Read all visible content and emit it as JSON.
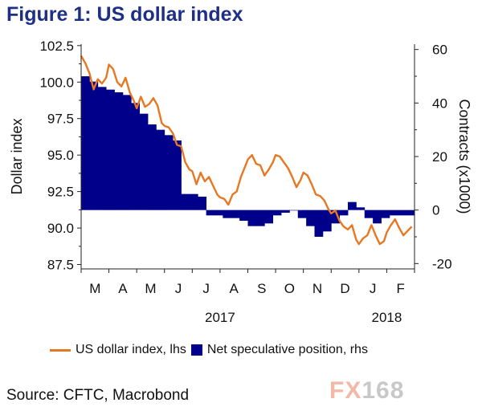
{
  "title": "Figure 1: US dollar index",
  "legend": {
    "line_label": "US dollar index, lhs",
    "bar_label": "Net speculative position, rhs"
  },
  "source": "Source: CFTC, Macrobond",
  "logo": {
    "part1": "FX",
    "part2": "168"
  },
  "colors": {
    "line": "#e87722",
    "bars": "#00008b",
    "title": "#1f2f86"
  },
  "chart_data": {
    "type": "line+bar",
    "title": "Figure 1: US dollar index",
    "ylabel_left": "Dollar index",
    "ylabel_right": "Contracts (x1000)",
    "ylim_left": [
      87.2,
      102.6
    ],
    "ylim_right": [
      -22,
      62
    ],
    "y_ticks_left": [
      "102.5",
      "100.0",
      "97.5",
      "95.0",
      "92.5",
      "90.0",
      "87.5"
    ],
    "y_ticks_right": [
      "60",
      "40",
      "20",
      "0",
      "-20"
    ],
    "x_range": [
      0,
      12
    ],
    "x_tick_labels": [
      "M",
      "A",
      "M",
      "J",
      "J",
      "A",
      "S",
      "O",
      "N",
      "D",
      "J",
      "F"
    ],
    "x_year_labels": [
      {
        "label": "2017",
        "x": 5
      },
      {
        "label": "2018",
        "x": 11
      }
    ],
    "line_series": {
      "name": "US dollar index, lhs",
      "x": [
        0,
        0.15,
        0.3,
        0.45,
        0.6,
        0.75,
        0.9,
        1.0,
        1.15,
        1.3,
        1.45,
        1.6,
        1.75,
        1.9,
        2.0,
        2.15,
        2.3,
        2.45,
        2.6,
        2.75,
        2.9,
        3.0,
        3.15,
        3.3,
        3.45,
        3.6,
        3.75,
        3.9,
        4.0,
        4.15,
        4.3,
        4.45,
        4.6,
        4.75,
        4.9,
        5.0,
        5.15,
        5.3,
        5.45,
        5.6,
        5.75,
        5.9,
        6.0,
        6.15,
        6.3,
        6.45,
        6.6,
        6.75,
        6.9,
        7.0,
        7.15,
        7.3,
        7.45,
        7.6,
        7.75,
        7.9,
        8.0,
        8.15,
        8.3,
        8.45,
        8.6,
        8.75,
        8.9,
        9.0,
        9.15,
        9.3,
        9.45,
        9.6,
        9.75,
        9.9,
        10.0,
        10.15,
        10.3,
        10.45,
        10.6,
        10.75,
        10.9,
        11.0,
        11.15,
        11.3,
        11.45,
        11.6,
        11.75,
        11.9
      ],
      "values": [
        101.8,
        101.3,
        100.6,
        99.5,
        100.2,
        99.9,
        100.3,
        101.2,
        100.9,
        100.0,
        99.7,
        100.3,
        99.3,
        98.7,
        98.2,
        99.0,
        98.3,
        98.5,
        98.9,
        98.4,
        97.2,
        97.0,
        96.9,
        96.5,
        95.7,
        95.6,
        94.5,
        94.0,
        93.9,
        93.0,
        93.8,
        93.2,
        93.5,
        92.9,
        92.3,
        92.1,
        92.0,
        91.6,
        92.3,
        92.5,
        93.5,
        94.2,
        94.7,
        95.0,
        94.4,
        94.3,
        93.6,
        94.0,
        94.5,
        95.0,
        94.9,
        94.5,
        94.1,
        93.5,
        92.8,
        93.3,
        93.8,
        93.6,
        93.0,
        92.3,
        92.2,
        91.9,
        91.3,
        91.0,
        91.2,
        90.5,
        90.1,
        89.9,
        90.2,
        89.2,
        88.9,
        89.3,
        89.5,
        90.2,
        89.5,
        88.9,
        89.1,
        89.7,
        90.2,
        90.6,
        90.0,
        89.5,
        89.8,
        90.1
      ]
    },
    "bar_series": {
      "name": "Net speculative position, rhs",
      "x_start": [
        0,
        0.3,
        0.6,
        0.9,
        1.2,
        1.5,
        1.8,
        2.1,
        2.4,
        2.7,
        3.0,
        3.3,
        3.6,
        3.9,
        4.2,
        4.5,
        4.8,
        5.1,
        5.4,
        5.7,
        6.0,
        6.3,
        6.6,
        6.9,
        7.2,
        7.5,
        7.8,
        8.1,
        8.4,
        8.7,
        9.0,
        9.3,
        9.6,
        9.9,
        10.2,
        10.5,
        10.8,
        11.1,
        11.4,
        11.7
      ],
      "width": 0.3,
      "values": [
        50,
        48,
        46,
        45,
        44,
        43,
        40,
        36,
        32,
        30,
        28,
        26,
        6,
        6,
        5,
        -2,
        -2,
        -3,
        -3,
        -4,
        -6,
        -6,
        -5,
        -2,
        -1,
        0,
        -3,
        -6,
        -10,
        -8,
        -5,
        -2,
        3,
        1,
        -3,
        -5,
        -3,
        -2,
        -2,
        -2
      ]
    }
  }
}
